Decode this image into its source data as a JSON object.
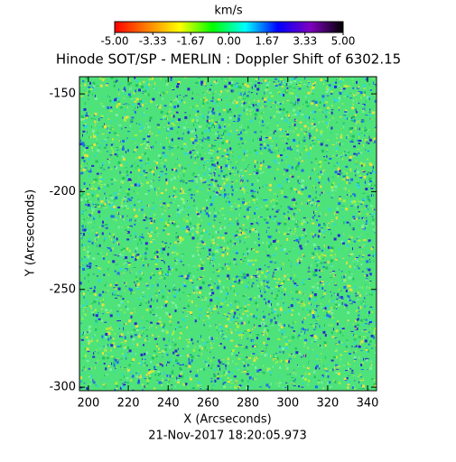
{
  "chart_data": {
    "type": "image",
    "title": "Hinode SOT/SP - MERLIN : Doppler Shift of 6302.15",
    "x_label": "X (Arcseconds)",
    "y_label": "Y (Arcseconds)",
    "subtitle": "21-Nov-2017 18:20:05.973",
    "xlim": [
      195.5,
      344.5
    ],
    "xticks": [
      200,
      220,
      240,
      260,
      280,
      300,
      320,
      340
    ],
    "ylim": [
      -301.8,
      -141.2
    ],
    "yticks": [
      -300,
      -250,
      -200,
      -150
    ],
    "image_color": "#4ee27a",
    "speckle_colors": [
      "#2a2ad0",
      "#1e6ee8",
      "#30d8d8",
      "#7cf0a0",
      "#a8f040",
      "#e8e040",
      "#20c060"
    ],
    "colorbar": {
      "label": "km/s",
      "lim": [
        -5,
        5
      ],
      "ticks": [
        {
          "value": -5,
          "label": "-5.00"
        },
        {
          "value": -3.33,
          "label": "-3.33"
        },
        {
          "value": -1.67,
          "label": "-1.67"
        },
        {
          "value": 0,
          "label": "0.00"
        },
        {
          "value": 1.67,
          "label": "1.67"
        },
        {
          "value": 3.33,
          "label": "3.33"
        },
        {
          "value": 5,
          "label": "5.00"
        }
      ],
      "colors": [
        "#ff0000",
        "#ff8000",
        "#ffff00",
        "#00ff00",
        "#00ffff",
        "#0000ff",
        "#8000c0",
        "#000000"
      ]
    }
  }
}
